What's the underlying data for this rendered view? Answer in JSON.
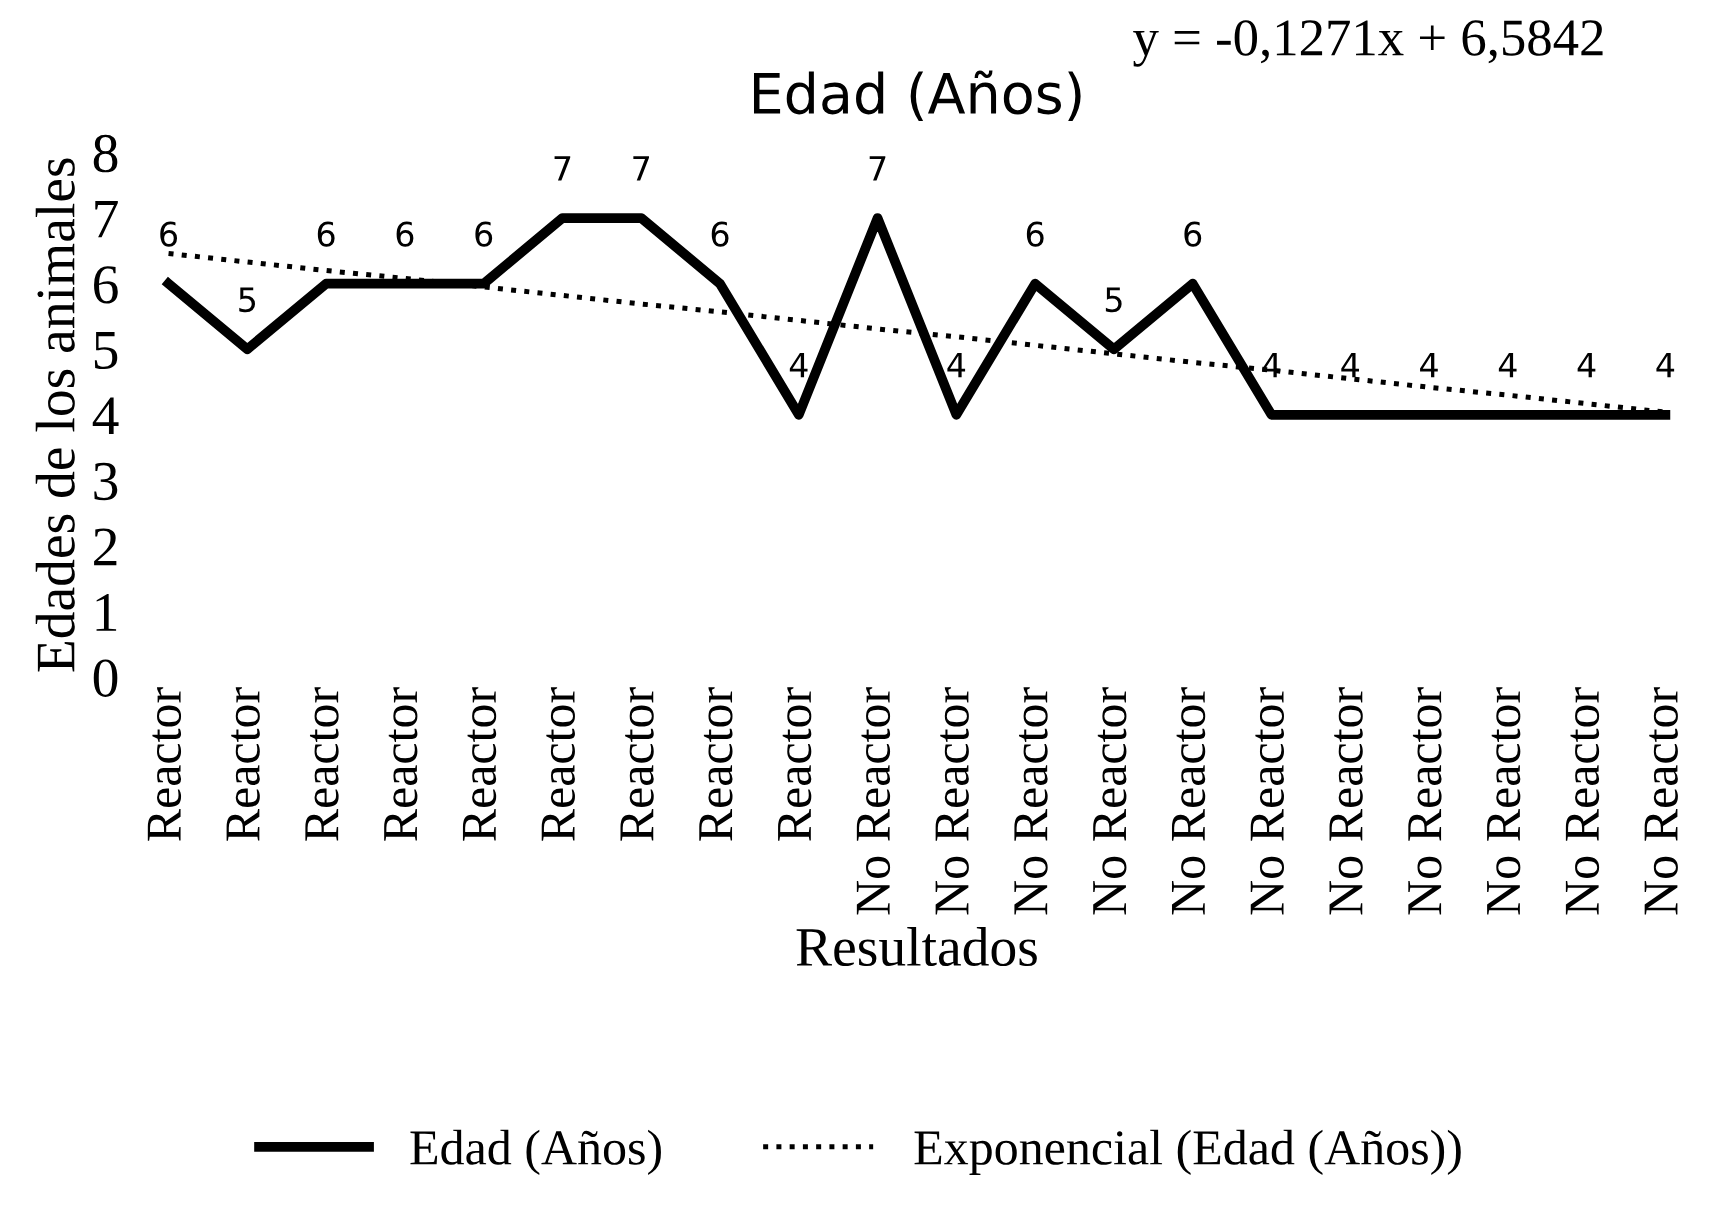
{
  "chart_data": {
    "type": "line",
    "title": "Edad (Años)",
    "xlabel": "Resultados",
    "ylabel": "Edades de los animales",
    "categories": [
      "Reactor",
      "Reactor",
      "Reactor",
      "Reactor",
      "Reactor",
      "Reactor",
      "Reactor",
      "Reactor",
      "Reactor",
      "No Reactor",
      "No Reactor",
      "No Reactor",
      "No Reactor",
      "No Reactor",
      "No Reactor",
      "No Reactor",
      "No Reactor",
      "No Reactor",
      "No Reactor",
      "No Reactor"
    ],
    "series": [
      {
        "name": "Edad (Años)",
        "color": "#000000",
        "line_style": "solid",
        "data_labels": true,
        "values": [
          6,
          5,
          6,
          6,
          6,
          7,
          7,
          6,
          4,
          7,
          4,
          6,
          5,
          6,
          4,
          4,
          4,
          4,
          4,
          4
        ]
      },
      {
        "name": "Exponencial (Edad (Años))",
        "color": "#000000",
        "line_style": "dotted",
        "values": [
          6.46,
          6.33,
          6.2,
          6.08,
          5.95,
          5.82,
          5.69,
          5.57,
          5.44,
          5.31,
          5.19,
          5.06,
          4.93,
          4.8,
          4.68,
          4.55,
          4.42,
          4.3,
          4.17,
          4.04
        ]
      }
    ],
    "ylim": [
      0,
      8
    ],
    "yticks": [
      0,
      1,
      2,
      3,
      4,
      5,
      6,
      7,
      8
    ],
    "grid": false,
    "legend": "bottom",
    "marker": "none",
    "annotations": [
      "y = -0,1271x + 6,5842"
    ]
  }
}
